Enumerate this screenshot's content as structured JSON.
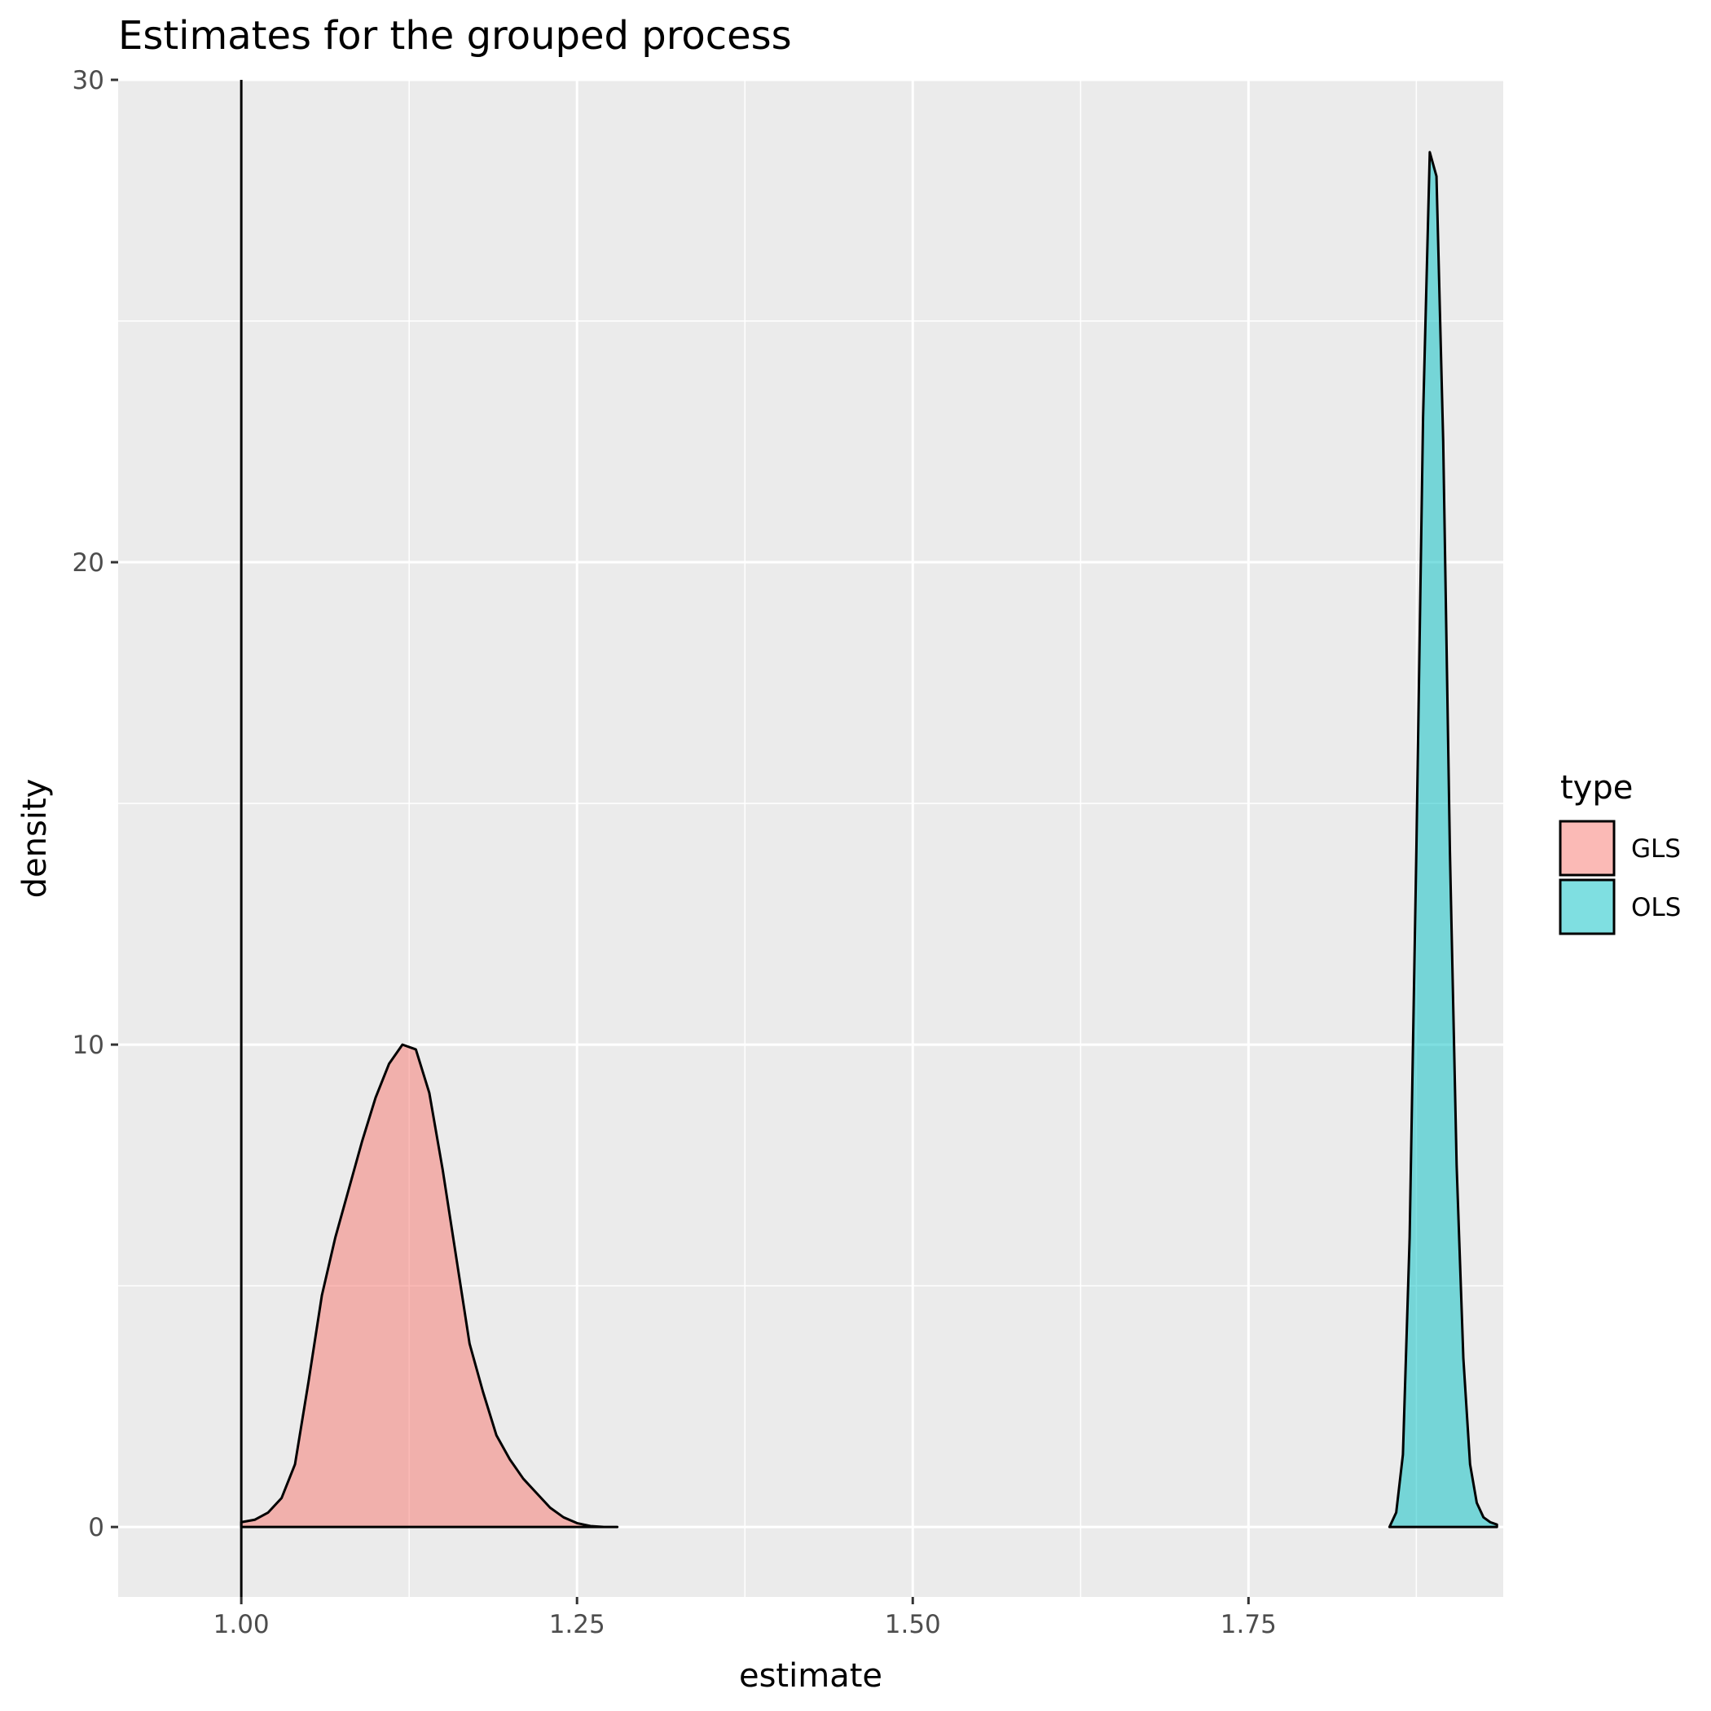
{
  "chart_data": {
    "type": "area",
    "title": "Estimates for the grouped process",
    "xlabel": "estimate",
    "ylabel": "density",
    "xlim": [
      0.9083,
      1.9397
    ],
    "ylim": [
      -1.45,
      30.0
    ],
    "x_ticks": [
      1.0,
      1.25,
      1.5,
      1.75
    ],
    "x_tick_labels": [
      "1.00",
      "1.25",
      "1.50",
      "1.75"
    ],
    "x_minor_ticks": [
      1.125,
      1.375,
      1.625,
      1.875
    ],
    "y_ticks": [
      0,
      10,
      20,
      30
    ],
    "y_tick_labels": [
      "0",
      "10",
      "20",
      "30"
    ],
    "y_minor_ticks": [
      5,
      15,
      25
    ],
    "grid": true,
    "vline": {
      "x": 1.0,
      "color": "#000000"
    },
    "legend": {
      "title": "type",
      "position": "right",
      "entries": [
        {
          "label": "GLS",
          "color": "#F8766D"
        },
        {
          "label": "OLS",
          "color": "#00BFC4"
        }
      ]
    },
    "series": [
      {
        "name": "GLS",
        "color": "#F8766D",
        "x": [
          1.0,
          1.01,
          1.02,
          1.03,
          1.04,
          1.05,
          1.06,
          1.07,
          1.08,
          1.09,
          1.1,
          1.11,
          1.12,
          1.13,
          1.14,
          1.15,
          1.16,
          1.17,
          1.18,
          1.19,
          1.2,
          1.21,
          1.22,
          1.23,
          1.24,
          1.25,
          1.26,
          1.27,
          1.28
        ],
        "y": [
          0.1,
          0.15,
          0.3,
          0.6,
          1.3,
          3.0,
          4.8,
          6.0,
          7.0,
          8.0,
          8.9,
          9.6,
          10.0,
          9.9,
          9.0,
          7.4,
          5.6,
          3.8,
          2.8,
          1.9,
          1.4,
          1.0,
          0.7,
          0.4,
          0.2,
          0.08,
          0.02,
          0.0,
          0.0
        ]
      },
      {
        "name": "OLS",
        "color": "#00BFC4",
        "x": [
          1.855,
          1.86,
          1.865,
          1.87,
          1.875,
          1.88,
          1.885,
          1.89,
          1.895,
          1.9,
          1.905,
          1.91,
          1.915,
          1.92,
          1.925,
          1.93,
          1.935
        ],
        "y": [
          0.0,
          0.3,
          1.5,
          6.0,
          14.0,
          23.0,
          28.5,
          28.0,
          22.5,
          14.0,
          7.5,
          3.5,
          1.3,
          0.5,
          0.2,
          0.1,
          0.05
        ]
      }
    ]
  }
}
